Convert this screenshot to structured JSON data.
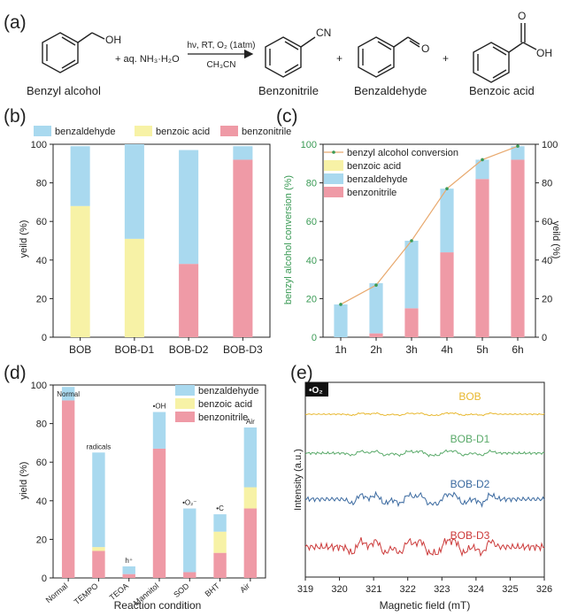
{
  "colors": {
    "benzaldehyde": "#a9d9ef",
    "benzoic_acid": "#f7f2a6",
    "benzonitrile": "#ef9aa6",
    "conversion": "#e8a96e",
    "conversion_axis": "#3a9a55",
    "epr": [
      "#e8b830",
      "#5aaa6a",
      "#3b6aa0",
      "#cc3a3a"
    ]
  },
  "reaction": {
    "panel_label": "(a)",
    "reactant": "Benzyl alcohol",
    "reactant_oh": "OH",
    "reagent": "+ aq. NH₃·H₂O",
    "conditions_top": "hν, RT, O₂ (1atm)",
    "conditions_bottom": "CH₃CN",
    "products": [
      "Benzonitrile",
      "Benzaldehyde",
      "Benzoic acid"
    ],
    "nitrile_label": "CN",
    "aldehyde_o": "O",
    "acid_o": "O",
    "acid_oh": "OH",
    "plus": "+"
  },
  "chart_data": [
    {
      "panel": "(b)",
      "type": "bar",
      "stacked": true,
      "categories": [
        "BOB",
        "BOB-D1",
        "BOB-D2",
        "BOB-D3"
      ],
      "series": [
        {
          "name": "benzonitrile",
          "values": [
            0,
            0,
            38,
            92
          ]
        },
        {
          "name": "benzoic acid",
          "values": [
            68,
            51,
            0,
            0
          ]
        },
        {
          "name": "benzaldehyde",
          "values": [
            31,
            49,
            59,
            7
          ]
        }
      ],
      "legend_order": [
        "benzaldehyde",
        "benzoic acid",
        "benzonitrile"
      ],
      "ylabel": "yeild (%)",
      "ylim": [
        0,
        100
      ],
      "yticks": [
        0,
        20,
        40,
        60,
        80,
        100
      ],
      "legend": "top"
    },
    {
      "panel": "(c)",
      "type": "bar",
      "stacked": true,
      "categories": [
        "1h",
        "2h",
        "3h",
        "4h",
        "5h",
        "6h"
      ],
      "series": [
        {
          "name": "benzonitrile",
          "values": [
            0,
            2,
            15,
            44,
            82,
            92
          ]
        },
        {
          "name": "benzoic acid",
          "values": [
            0,
            0,
            0,
            0,
            0,
            0
          ]
        },
        {
          "name": "benzaldehyde",
          "values": [
            17,
            26,
            35,
            33,
            10,
            7
          ]
        }
      ],
      "line": {
        "name": "benzyl alcohol conversion",
        "values": [
          17,
          27,
          50,
          77,
          92,
          99
        ]
      },
      "legend_order": [
        "benzyl alcohol conversion",
        "benzoic acid",
        "benzaldehyde",
        "benzonitrile"
      ],
      "ylabel_left": "benzyl alcohol conversion (%)",
      "ylabel_right": "yeild (%)",
      "ylim": [
        0,
        100
      ],
      "yticks": [
        0,
        20,
        40,
        60,
        80,
        100
      ],
      "legend": "top-left"
    },
    {
      "panel": "(d)",
      "type": "bar",
      "stacked": true,
      "categories": [
        "Normal",
        "TEMPO",
        "TEOA",
        "Mannitol",
        "SOD",
        "BHT",
        "Air"
      ],
      "annotations": [
        "Normal",
        "radicals",
        "h⁺",
        "•OH",
        "•O₂⁻",
        "•C",
        "Air"
      ],
      "series": [
        {
          "name": "benzonitrile",
          "values": [
            92,
            14,
            2,
            67,
            3,
            13,
            36
          ]
        },
        {
          "name": "benzoic acid",
          "values": [
            0,
            2,
            0,
            0,
            0,
            11,
            11
          ]
        },
        {
          "name": "benzaldehyde",
          "values": [
            7,
            49,
            4,
            19,
            33,
            9,
            31
          ]
        }
      ],
      "legend_order": [
        "benzaldehyde",
        "benzoic acid",
        "benzonitrile"
      ],
      "xlabel": "Reaction condition",
      "ylabel": "yield  (%)",
      "ylim": [
        0,
        100
      ],
      "yticks": [
        0,
        20,
        40,
        60,
        80,
        100
      ],
      "legend": "top-right"
    },
    {
      "panel": "(e)",
      "type": "line",
      "title_badge": "•O₂",
      "series": [
        {
          "name": "BOB"
        },
        {
          "name": "BOB-D1"
        },
        {
          "name": "BOB-D2"
        },
        {
          "name": "BOB-D3"
        }
      ],
      "xlabel": "Magnetic field (mT)",
      "ylabel": "Intensity (a.u.)",
      "xlim": [
        319,
        326
      ],
      "xticks": [
        319,
        320,
        321,
        322,
        323,
        324,
        325,
        326
      ]
    }
  ]
}
